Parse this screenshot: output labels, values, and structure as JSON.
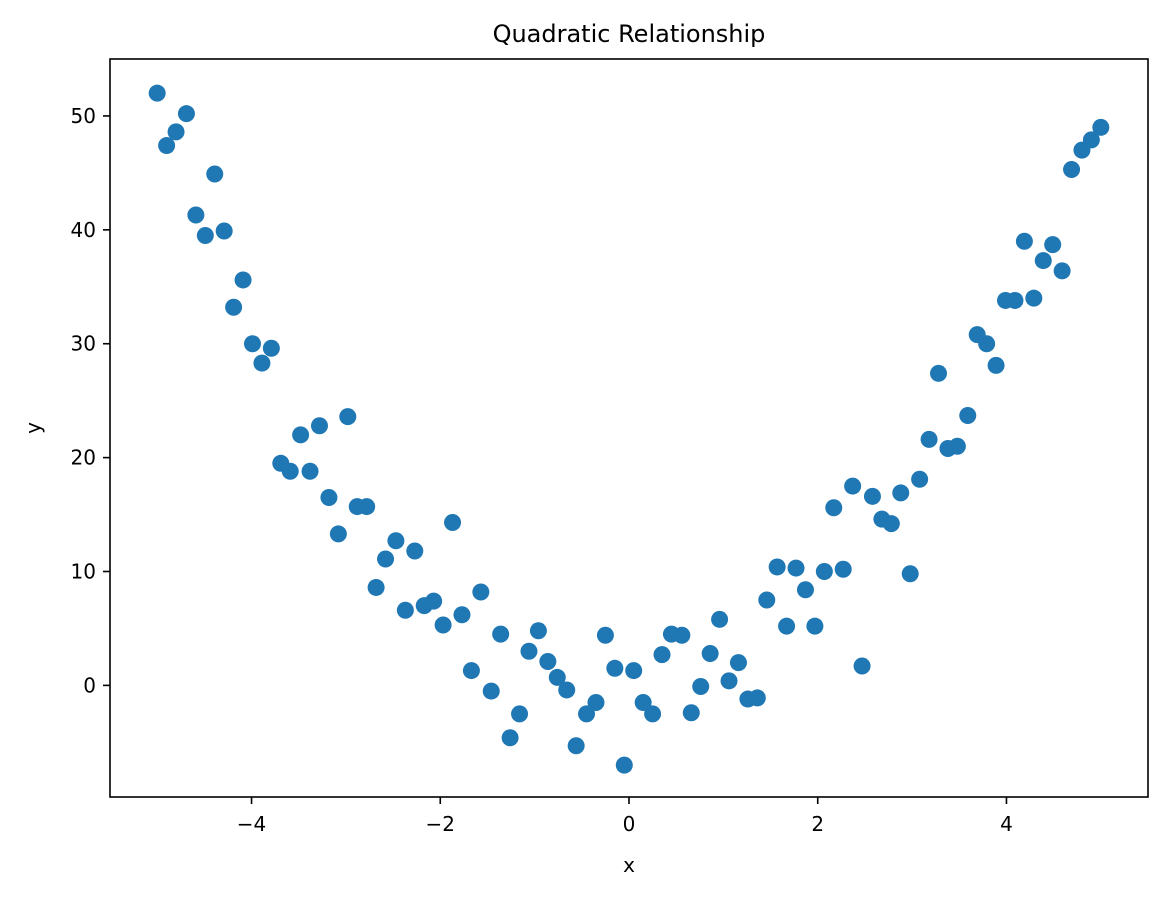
{
  "chart_data": {
    "type": "scatter",
    "title": "Quadratic Relationship",
    "xlabel": "x",
    "ylabel": "y",
    "xlim": [
      -5.5,
      5.5
    ],
    "ylim": [
      -9.8,
      55
    ],
    "xticks": [
      -4,
      -2,
      0,
      2,
      4
    ],
    "yticks": [
      0,
      10,
      20,
      30,
      40,
      50
    ],
    "xtick_labels": [
      "−4",
      "−2",
      "0",
      "2",
      "4"
    ],
    "ytick_labels": [
      "0",
      "10",
      "20",
      "30",
      "40",
      "50"
    ],
    "grid": false,
    "legend": false,
    "color": "#1f77b4",
    "series": [
      {
        "points": [
          [
            -5.0,
            52.0
          ],
          [
            -4.9,
            47.4
          ],
          [
            -4.8,
            48.6
          ],
          [
            -4.69,
            50.2
          ],
          [
            -4.59,
            41.3
          ],
          [
            -4.49,
            39.5
          ],
          [
            -4.39,
            44.9
          ],
          [
            -4.29,
            39.9
          ],
          [
            -4.19,
            33.2
          ],
          [
            -4.09,
            35.6
          ],
          [
            -3.99,
            30.0
          ],
          [
            -3.89,
            28.3
          ],
          [
            -3.79,
            29.6
          ],
          [
            -3.69,
            19.5
          ],
          [
            -3.59,
            18.8
          ],
          [
            -3.48,
            22.0
          ],
          [
            -3.38,
            18.8
          ],
          [
            -3.28,
            22.8
          ],
          [
            -3.18,
            16.5
          ],
          [
            -3.08,
            13.3
          ],
          [
            -2.98,
            23.6
          ],
          [
            -2.88,
            15.7
          ],
          [
            -2.78,
            15.7
          ],
          [
            -2.68,
            8.6
          ],
          [
            -2.58,
            11.1
          ],
          [
            -2.47,
            12.7
          ],
          [
            -2.37,
            6.6
          ],
          [
            -2.27,
            11.8
          ],
          [
            -2.17,
            7.0
          ],
          [
            -2.07,
            7.4
          ],
          [
            -1.97,
            5.3
          ],
          [
            -1.87,
            14.3
          ],
          [
            -1.77,
            6.2
          ],
          [
            -1.67,
            1.3
          ],
          [
            -1.57,
            8.2
          ],
          [
            -1.46,
            -0.5
          ],
          [
            -1.36,
            4.5
          ],
          [
            -1.26,
            -4.6
          ],
          [
            -1.16,
            -2.5
          ],
          [
            -1.06,
            3.0
          ],
          [
            -0.96,
            4.8
          ],
          [
            -0.86,
            2.1
          ],
          [
            -0.76,
            0.7
          ],
          [
            -0.66,
            -0.4
          ],
          [
            -0.56,
            -5.3
          ],
          [
            -0.45,
            -2.5
          ],
          [
            -0.35,
            -1.5
          ],
          [
            -0.25,
            4.4
          ],
          [
            -0.15,
            1.5
          ],
          [
            -0.05,
            -7.0
          ],
          [
            0.05,
            1.3
          ],
          [
            0.15,
            -1.5
          ],
          [
            0.25,
            -2.5
          ],
          [
            0.35,
            2.7
          ],
          [
            0.45,
            4.5
          ],
          [
            0.56,
            4.4
          ],
          [
            0.66,
            -2.4
          ],
          [
            0.76,
            -0.1
          ],
          [
            0.86,
            2.8
          ],
          [
            0.96,
            5.8
          ],
          [
            1.06,
            0.4
          ],
          [
            1.16,
            2.0
          ],
          [
            1.26,
            -1.2
          ],
          [
            1.36,
            -1.1
          ],
          [
            1.46,
            7.5
          ],
          [
            1.57,
            10.4
          ],
          [
            1.67,
            5.2
          ],
          [
            1.77,
            10.3
          ],
          [
            1.87,
            8.4
          ],
          [
            1.97,
            5.2
          ],
          [
            2.07,
            10.0
          ],
          [
            2.17,
            15.6
          ],
          [
            2.27,
            10.2
          ],
          [
            2.37,
            17.5
          ],
          [
            2.47,
            1.7
          ],
          [
            2.58,
            16.6
          ],
          [
            2.68,
            14.6
          ],
          [
            2.78,
            14.2
          ],
          [
            2.88,
            16.9
          ],
          [
            2.98,
            9.8
          ],
          [
            3.08,
            18.1
          ],
          [
            3.18,
            21.6
          ],
          [
            3.28,
            27.4
          ],
          [
            3.38,
            20.8
          ],
          [
            3.48,
            21.0
          ],
          [
            3.59,
            23.7
          ],
          [
            3.69,
            30.8
          ],
          [
            3.79,
            30.0
          ],
          [
            3.89,
            28.1
          ],
          [
            3.99,
            33.8
          ],
          [
            4.09,
            33.8
          ],
          [
            4.19,
            39.0
          ],
          [
            4.29,
            34.0
          ],
          [
            4.39,
            37.3
          ],
          [
            4.49,
            38.7
          ],
          [
            4.59,
            36.4
          ],
          [
            4.69,
            45.3
          ],
          [
            4.8,
            47.0
          ],
          [
            4.9,
            47.9
          ],
          [
            5.0,
            49.0
          ]
        ]
      }
    ]
  }
}
